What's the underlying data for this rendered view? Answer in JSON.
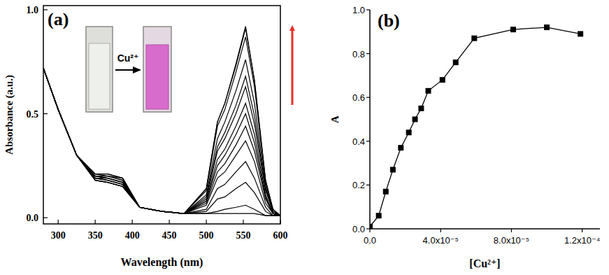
{
  "chart_data": [
    {
      "type": "line",
      "title": "(a)",
      "x_label": "Wavelength (nm)",
      "y_label": "Absorbance (a.u.)",
      "annotation": "Cu²⁺",
      "color": "#000000",
      "x": [
        280,
        300,
        325,
        350,
        367,
        387,
        410,
        440,
        470,
        500,
        515,
        525,
        540,
        553,
        565,
        580,
        590,
        600
      ],
      "xlim": [
        280,
        600
      ],
      "xticks": [
        300,
        350,
        400,
        450,
        500,
        550,
        600
      ],
      "ylim": [
        -0.03,
        1.02
      ],
      "yticks": [
        {
          "value": 0,
          "label": "0.0"
        },
        0.5,
        {
          "value": 1,
          "label": "1.0"
        }
      ],
      "series": [
        {
          "values": [
            0.72,
            0.52,
            0.3,
            0.21,
            0.21,
            0.19,
            0.05,
            0.03,
            0.02,
            0.02,
            0.02,
            0.02,
            0.02,
            0.02,
            0.02,
            0.01,
            0.01,
            0.01
          ]
        },
        {
          "values": [
            0.72,
            0.52,
            0.3,
            0.21,
            0.21,
            0.19,
            0.05,
            0.03,
            0.02,
            0.02,
            0.03,
            0.04,
            0.05,
            0.06,
            0.04,
            0.01,
            0.01,
            0.01
          ]
        },
        {
          "values": [
            0.72,
            0.52,
            0.3,
            0.21,
            0.2,
            0.19,
            0.05,
            0.03,
            0.02,
            0.03,
            0.09,
            0.1,
            0.14,
            0.17,
            0.12,
            0.03,
            0.01,
            0.01
          ]
        },
        {
          "values": [
            0.72,
            0.52,
            0.3,
            0.2,
            0.2,
            0.18,
            0.05,
            0.03,
            0.02,
            0.04,
            0.14,
            0.16,
            0.22,
            0.27,
            0.19,
            0.05,
            0.01,
            0.01
          ]
        },
        {
          "values": [
            0.72,
            0.52,
            0.3,
            0.2,
            0.2,
            0.18,
            0.05,
            0.03,
            0.02,
            0.06,
            0.19,
            0.22,
            0.3,
            0.37,
            0.27,
            0.07,
            0.02,
            0.01
          ]
        },
        {
          "values": [
            0.72,
            0.52,
            0.3,
            0.2,
            0.19,
            0.17,
            0.05,
            0.03,
            0.02,
            0.07,
            0.22,
            0.26,
            0.35,
            0.44,
            0.32,
            0.09,
            0.02,
            0.01
          ]
        },
        {
          "values": [
            0.72,
            0.52,
            0.3,
            0.2,
            0.19,
            0.17,
            0.05,
            0.03,
            0.02,
            0.08,
            0.25,
            0.3,
            0.4,
            0.5,
            0.36,
            0.1,
            0.02,
            0.01
          ]
        },
        {
          "values": [
            0.72,
            0.52,
            0.3,
            0.19,
            0.19,
            0.17,
            0.05,
            0.03,
            0.02,
            0.08,
            0.28,
            0.33,
            0.44,
            0.55,
            0.4,
            0.11,
            0.02,
            0.01
          ]
        },
        {
          "values": [
            0.72,
            0.52,
            0.3,
            0.19,
            0.18,
            0.16,
            0.05,
            0.03,
            0.02,
            0.09,
            0.32,
            0.38,
            0.5,
            0.63,
            0.45,
            0.13,
            0.03,
            0.01
          ]
        },
        {
          "values": [
            0.72,
            0.52,
            0.3,
            0.19,
            0.18,
            0.16,
            0.05,
            0.03,
            0.02,
            0.1,
            0.34,
            0.41,
            0.54,
            0.68,
            0.49,
            0.14,
            0.03,
            0.01
          ]
        },
        {
          "values": [
            0.72,
            0.52,
            0.3,
            0.19,
            0.18,
            0.16,
            0.05,
            0.03,
            0.02,
            0.11,
            0.38,
            0.46,
            0.61,
            0.76,
            0.55,
            0.15,
            0.03,
            0.01
          ]
        },
        {
          "values": [
            0.72,
            0.52,
            0.3,
            0.18,
            0.17,
            0.15,
            0.05,
            0.03,
            0.02,
            0.13,
            0.44,
            0.52,
            0.7,
            0.87,
            0.63,
            0.17,
            0.03,
            0.01
          ]
        },
        {
          "values": [
            0.72,
            0.52,
            0.3,
            0.18,
            0.17,
            0.15,
            0.05,
            0.03,
            0.02,
            0.14,
            0.46,
            0.55,
            0.73,
            0.91,
            0.66,
            0.18,
            0.04,
            0.01
          ]
        },
        {
          "values": [
            0.72,
            0.52,
            0.3,
            0.18,
            0.17,
            0.15,
            0.05,
            0.03,
            0.02,
            0.14,
            0.46,
            0.55,
            0.74,
            0.92,
            0.66,
            0.18,
            0.04,
            0.01
          ]
        }
      ]
    },
    {
      "type": "line",
      "title": "(b)",
      "x_label": "[Cu²⁺]",
      "y_label": "A",
      "color": "#000000",
      "marker": "square",
      "line_style": "solid",
      "x": [
        0,
        5e-06,
        9e-06,
        1.3e-05,
        1.75e-05,
        2.2e-05,
        2.55e-05,
        2.9e-05,
        3.3e-05,
        4.1e-05,
        4.85e-05,
        5.9e-05,
        8.1e-05,
        0.0001,
        0.000119
      ],
      "xlim": [
        0,
        0.00013
      ],
      "xticks": [
        {
          "value": 0,
          "label": "0.0"
        },
        {
          "value": 4e-05,
          "label": "4.0x10⁻⁵"
        },
        {
          "value": 8e-05,
          "label": "8.0x10⁻⁵"
        },
        {
          "value": 0.00012,
          "label": "1.2x10⁻⁴"
        }
      ],
      "ylim": [
        0,
        1.0
      ],
      "yticks": [
        {
          "value": 0,
          "label": "0.0"
        },
        0.2,
        0.4,
        0.6,
        0.8,
        {
          "value": 1,
          "label": "1.0"
        }
      ],
      "series": [
        {
          "values": [
            0.01,
            0.06,
            0.17,
            0.27,
            0.37,
            0.44,
            0.5,
            0.55,
            0.63,
            0.68,
            0.76,
            0.87,
            0.91,
            0.92,
            0.89
          ]
        }
      ]
    }
  ]
}
